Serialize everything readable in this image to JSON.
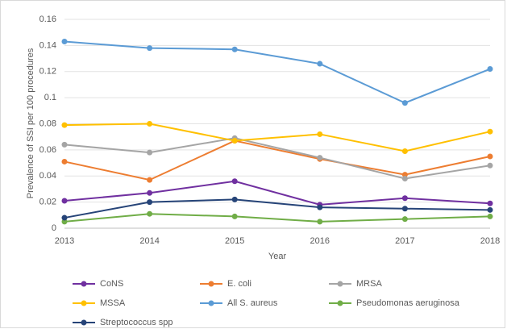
{
  "chart_data": {
    "type": "line",
    "x_label": "Year",
    "y_label": "Prevalence of SSI per 100 procedures",
    "categories": [
      "2013",
      "2014",
      "2015",
      "2016",
      "2017",
      "2018"
    ],
    "ylim": [
      0,
      0.16
    ],
    "yticks": [
      0,
      0.02,
      0.04,
      0.06,
      0.08,
      0.1,
      0.12,
      0.14,
      0.16
    ],
    "grid": true,
    "legend": "bottom",
    "series": [
      {
        "name": "CoNS",
        "color": "#7030a0",
        "values": [
          0.021,
          0.027,
          0.036,
          0.018,
          0.023,
          0.019
        ]
      },
      {
        "name": "E. coli",
        "color": "#ed7d31",
        "values": [
          0.051,
          0.037,
          0.067,
          0.053,
          0.041,
          0.055
        ]
      },
      {
        "name": "MRSA",
        "color": "#a5a5a5",
        "values": [
          0.064,
          0.058,
          0.069,
          0.054,
          0.038,
          0.048
        ]
      },
      {
        "name": "MSSA",
        "color": "#ffc000",
        "values": [
          0.079,
          0.08,
          0.067,
          0.072,
          0.059,
          0.074
        ]
      },
      {
        "name": "All S. aureus",
        "color": "#5b9bd5",
        "values": [
          0.143,
          0.138,
          0.137,
          0.126,
          0.096,
          0.122
        ]
      },
      {
        "name": "Pseudomonas aeruginosa",
        "color": "#70ad47",
        "values": [
          0.005,
          0.011,
          0.009,
          0.005,
          0.007,
          0.009
        ]
      },
      {
        "name": "Streptococcus spp",
        "color": "#264478",
        "values": [
          0.008,
          0.02,
          0.022,
          0.016,
          0.015,
          0.014
        ]
      }
    ]
  }
}
